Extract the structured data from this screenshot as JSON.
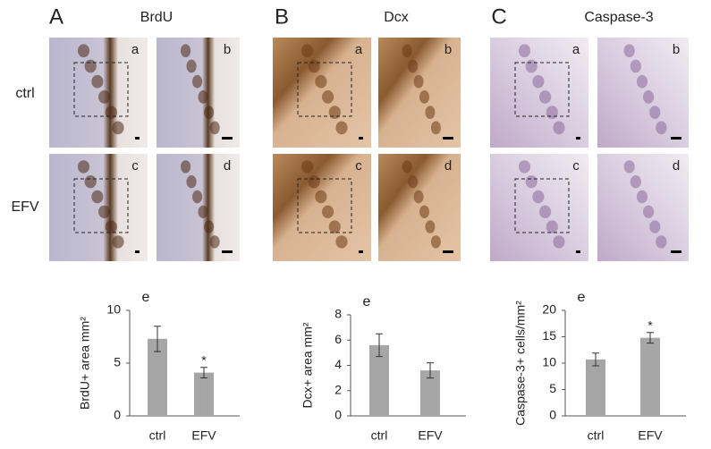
{
  "panels": [
    {
      "letter": "A",
      "title": "BrdU",
      "tiles": [
        "a",
        "b",
        "c",
        "d"
      ]
    },
    {
      "letter": "B",
      "title": "Dcx",
      "tiles": [
        "a",
        "b",
        "c",
        "d"
      ]
    },
    {
      "letter": "C",
      "title": "Caspase-3",
      "tiles": [
        "a",
        "b",
        "c",
        "d"
      ]
    }
  ],
  "row_labels": [
    "ctrl",
    "EFV"
  ],
  "chart_data": [
    {
      "type": "bar",
      "title": "e",
      "y_label": "BrdU+ area mm²",
      "categories": [
        "ctrl",
        "EFV"
      ],
      "values": [
        7.3,
        4.1
      ],
      "errors": [
        1.2,
        0.5
      ],
      "significance": [
        null,
        "*"
      ],
      "color": "#a6a6a6",
      "ylim": [
        0,
        10
      ],
      "yticks": [
        0,
        5,
        10
      ]
    },
    {
      "type": "bar",
      "title": "e",
      "y_label": "Dcx+ area mm²",
      "categories": [
        "ctrl",
        "EFV"
      ],
      "values": [
        5.6,
        3.6
      ],
      "errors": [
        0.9,
        0.6
      ],
      "color": "#a6a6a6",
      "ylim": [
        0,
        8
      ],
      "yticks": [
        0,
        2,
        4,
        6,
        8
      ]
    },
    {
      "type": "bar",
      "title": "e",
      "y_label": "Caspase-3+ cells/mm²",
      "categories": [
        "ctrl",
        "EFV"
      ],
      "values": [
        10.7,
        14.8
      ],
      "errors": [
        1.2,
        1.0
      ],
      "significance": [
        null,
        "*"
      ],
      "color": "#a6a6a6",
      "ylim": [
        0,
        20
      ],
      "yticks": [
        0,
        5,
        10,
        15,
        20
      ]
    }
  ]
}
